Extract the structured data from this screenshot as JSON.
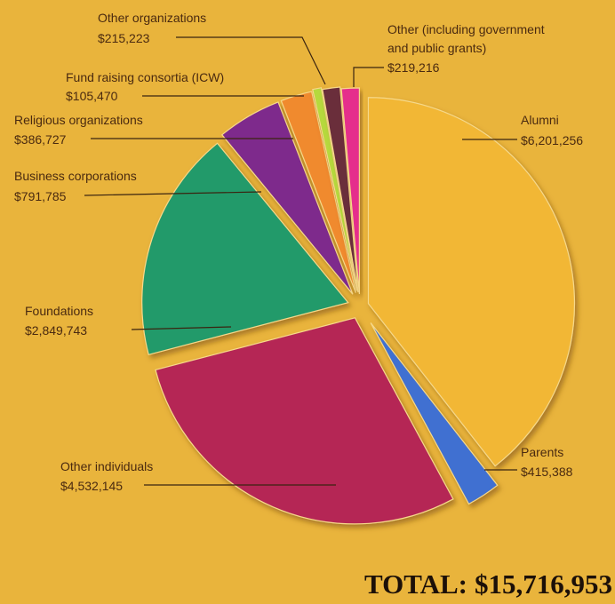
{
  "chart_data": {
    "type": "pie",
    "title": "",
    "total": {
      "label": "TOTAL:",
      "value": "$15,716,953"
    },
    "slices": [
      {
        "name": "Alumni",
        "value": 6201256,
        "value_label": "$6,201,256",
        "color": "#f2b735"
      },
      {
        "name": "Parents",
        "value": 415388,
        "value_label": "$415,388",
        "color": "#3f6fd1"
      },
      {
        "name": "Other individuals",
        "value": 4532145,
        "value_label": "$4,532,145",
        "color": "#b52654"
      },
      {
        "name": "Foundations",
        "value": 2849743,
        "value_label": "$2,849,743",
        "color": "#249a6a"
      },
      {
        "name": "Business corporations",
        "value": 791785,
        "value_label": "$791,785",
        "color": "#7e2b8c"
      },
      {
        "name": "Religious organizations",
        "value": 386727,
        "value_label": "$386,727",
        "color": "#f08a2e"
      },
      {
        "name": "Fund raising consortia (ICW)",
        "value": 105470,
        "value_label": "$105,470",
        "color": "#b6d93e"
      },
      {
        "name": "Other organizations",
        "value": 215223,
        "value_label": "$215,223",
        "color": "#6a2f3a"
      },
      {
        "name": "Other (including government and public grants)",
        "name_lines": [
          "Other (including government",
          "and public grants)"
        ],
        "value": 219216,
        "value_label": "$219,216",
        "color": "#e52d8c"
      }
    ]
  }
}
